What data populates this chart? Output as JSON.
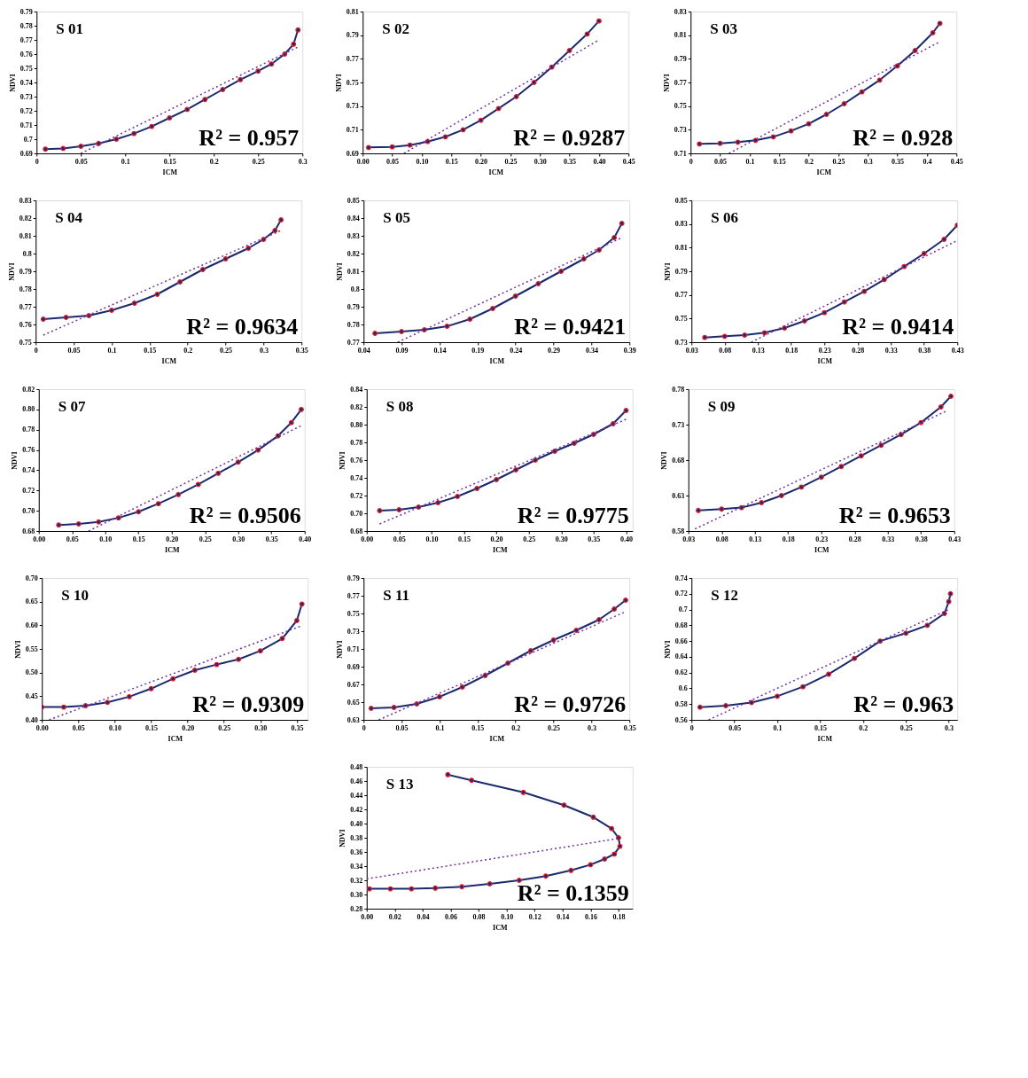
{
  "chart_data": [
    {
      "type": "line",
      "title": "S 01",
      "xlabel": "ICM",
      "ylabel": "NDVI",
      "marker": "circle",
      "line_style": "solid",
      "annotations": [
        "R² = 0.957"
      ],
      "xlim": [
        0,
        0.3
      ],
      "xticks": [
        0,
        0.05,
        0.1,
        0.15,
        0.2,
        0.25,
        0.3
      ],
      "ylim": [
        0.69,
        0.79
      ],
      "yticks": [
        0.69,
        0.7,
        0.71,
        0.72,
        0.73,
        0.74,
        0.75,
        0.76,
        0.77,
        0.78,
        0.79
      ],
      "series": [
        {
          "color": "#1a2a6c",
          "x": [
            0.01,
            0.03,
            0.05,
            0.07,
            0.09,
            0.11,
            0.13,
            0.15,
            0.17,
            0.19,
            0.21,
            0.23,
            0.25,
            0.265,
            0.28,
            0.29,
            0.295
          ],
          "values": [
            0.693,
            0.6935,
            0.695,
            0.697,
            0.7,
            0.704,
            0.709,
            0.715,
            0.721,
            0.728,
            0.735,
            0.742,
            0.748,
            0.753,
            0.76,
            0.767,
            0.777
          ]
        },
        {
          "color": "#7030a0",
          "marker": "none",
          "line_style": "dotted",
          "x": [
            0.05,
            0.295
          ],
          "values": [
            0.69,
            0.765
          ]
        }
      ]
    },
    {
      "type": "line",
      "title": "S 02",
      "xlabel": "ICM",
      "ylabel": "NDVI",
      "marker": "circle",
      "line_style": "solid",
      "annotations": [
        "R² = 0.9287"
      ],
      "xlim": [
        0,
        0.45
      ],
      "xticks": [
        {
          "value": 0,
          "label": "0.00"
        },
        0.05,
        {
          "value": 0.1,
          "label": "0.10"
        },
        0.15,
        {
          "value": 0.2,
          "label": "0.20"
        },
        0.25,
        {
          "value": 0.3,
          "label": "0.30"
        },
        0.35,
        {
          "value": 0.4,
          "label": "0.40"
        },
        0.45
      ],
      "ylim": [
        0.69,
        0.81
      ],
      "yticks": [
        0.69,
        0.71,
        0.73,
        0.75,
        0.77,
        0.79,
        0.81
      ],
      "series": [
        {
          "color": "#1a2a6c",
          "x": [
            0.01,
            0.05,
            0.08,
            0.11,
            0.14,
            0.17,
            0.2,
            0.23,
            0.26,
            0.29,
            0.32,
            0.35,
            0.38,
            0.4
          ],
          "values": [
            0.695,
            0.6955,
            0.697,
            0.7,
            0.704,
            0.71,
            0.718,
            0.728,
            0.738,
            0.75,
            0.763,
            0.777,
            0.791,
            0.802
          ]
        },
        {
          "color": "#7030a0",
          "marker": "none",
          "line_style": "dotted",
          "x": [
            0.07,
            0.4
          ],
          "values": [
            0.69,
            0.786
          ]
        }
      ]
    },
    {
      "type": "line",
      "title": "S 03",
      "xlabel": "ICM",
      "ylabel": "NDVI",
      "marker": "circle",
      "line_style": "solid",
      "annotations": [
        "R² = 0.928"
      ],
      "xlim": [
        0,
        0.45
      ],
      "xticks": [
        0,
        0.05,
        0.1,
        0.15,
        0.2,
        0.25,
        0.3,
        0.35,
        0.4,
        0.45
      ],
      "ylim": [
        0.71,
        0.83
      ],
      "yticks": [
        0.71,
        0.73,
        0.75,
        0.77,
        0.79,
        0.81,
        0.83
      ],
      "series": [
        {
          "color": "#1a2a6c",
          "x": [
            0.015,
            0.05,
            0.08,
            0.11,
            0.14,
            0.17,
            0.2,
            0.23,
            0.26,
            0.29,
            0.32,
            0.35,
            0.38,
            0.41,
            0.422
          ],
          "values": [
            0.718,
            0.7185,
            0.7195,
            0.721,
            0.724,
            0.729,
            0.735,
            0.743,
            0.752,
            0.762,
            0.772,
            0.784,
            0.797,
            0.812,
            0.82
          ]
        },
        {
          "color": "#7030a0",
          "marker": "none",
          "line_style": "dotted",
          "x": [
            0.065,
            0.42
          ],
          "values": [
            0.71,
            0.804
          ]
        }
      ]
    },
    {
      "type": "line",
      "title": "S 04",
      "xlabel": "ICM",
      "ylabel": "NDVI",
      "marker": "circle",
      "line_style": "solid",
      "annotations": [
        "R² = 0.9634"
      ],
      "xlim": [
        0,
        0.35
      ],
      "xticks": [
        0,
        0.05,
        0.1,
        0.15,
        0.2,
        0.25,
        0.3,
        0.35
      ],
      "ylim": [
        0.75,
        0.83
      ],
      "yticks": [
        0.75,
        0.76,
        0.77,
        0.78,
        0.79,
        0.8,
        0.81,
        0.82,
        0.83
      ],
      "series": [
        {
          "color": "#1a2a6c",
          "x": [
            0.01,
            0.04,
            0.07,
            0.1,
            0.13,
            0.16,
            0.19,
            0.22,
            0.25,
            0.28,
            0.3,
            0.315,
            0.323
          ],
          "values": [
            0.763,
            0.764,
            0.765,
            0.768,
            0.772,
            0.777,
            0.784,
            0.791,
            0.797,
            0.803,
            0.808,
            0.813,
            0.819
          ]
        },
        {
          "color": "#7030a0",
          "marker": "none",
          "line_style": "dotted",
          "x": [
            0.01,
            0.323
          ],
          "values": [
            0.754,
            0.813
          ]
        }
      ]
    },
    {
      "type": "line",
      "title": "S 05",
      "xlabel": "ICM",
      "ylabel": "NDVI",
      "marker": "circle",
      "line_style": "solid",
      "annotations": [
        "R² = 0.9421"
      ],
      "xlim": [
        0.04,
        0.39
      ],
      "xticks": [
        0.04,
        0.09,
        0.14,
        0.19,
        0.24,
        0.29,
        0.34,
        0.39
      ],
      "ylim": [
        0.77,
        0.85
      ],
      "yticks": [
        0.77,
        0.78,
        0.79,
        0.8,
        0.81,
        0.82,
        0.83,
        0.84,
        0.85
      ],
      "series": [
        {
          "color": "#1a2a6c",
          "x": [
            0.055,
            0.09,
            0.12,
            0.15,
            0.18,
            0.21,
            0.24,
            0.27,
            0.3,
            0.33,
            0.35,
            0.37,
            0.38
          ],
          "values": [
            0.775,
            0.776,
            0.777,
            0.779,
            0.783,
            0.789,
            0.796,
            0.803,
            0.81,
            0.817,
            0.822,
            0.829,
            0.837
          ]
        },
        {
          "color": "#7030a0",
          "marker": "none",
          "line_style": "dotted",
          "x": [
            0.085,
            0.38
          ],
          "values": [
            0.77,
            0.829
          ]
        }
      ]
    },
    {
      "type": "line",
      "title": "S 06",
      "xlabel": "ICM",
      "ylabel": "NDVI",
      "marker": "circle",
      "line_style": "solid",
      "annotations": [
        "R² = 0.9414"
      ],
      "xlim": [
        0.03,
        0.43
      ],
      "xticks": [
        0.03,
        0.08,
        0.13,
        0.18,
        0.23,
        0.28,
        0.33,
        0.38,
        0.43
      ],
      "ylim": [
        0.73,
        0.85
      ],
      "yticks": [
        0.73,
        0.75,
        0.77,
        0.79,
        0.81,
        0.83,
        0.85
      ],
      "series": [
        {
          "color": "#1a2a6c",
          "x": [
            0.05,
            0.08,
            0.11,
            0.14,
            0.17,
            0.2,
            0.23,
            0.26,
            0.29,
            0.32,
            0.35,
            0.38,
            0.41,
            0.43
          ],
          "values": [
            0.734,
            0.735,
            0.736,
            0.738,
            0.742,
            0.748,
            0.755,
            0.764,
            0.773,
            0.783,
            0.794,
            0.805,
            0.817,
            0.829
          ]
        },
        {
          "color": "#7030a0",
          "marker": "none",
          "line_style": "dotted",
          "x": [
            0.12,
            0.43
          ],
          "values": [
            0.73,
            0.816
          ]
        }
      ]
    },
    {
      "type": "line",
      "title": "S 07",
      "xlabel": "ICM",
      "ylabel": "NDVI",
      "marker": "circle",
      "line_style": "solid",
      "annotations": [
        "R² = 0.9506"
      ],
      "xlim": [
        0,
        0.4
      ],
      "xticks": [
        {
          "value": 0,
          "label": "0.00"
        },
        0.05,
        {
          "value": 0.1,
          "label": "0.10"
        },
        0.15,
        {
          "value": 0.2,
          "label": "0.20"
        },
        0.25,
        {
          "value": 0.3,
          "label": "0.30"
        },
        0.35,
        {
          "value": 0.4,
          "label": "0.40"
        }
      ],
      "ylim": [
        0.68,
        0.82
      ],
      "yticks": [
        0.68,
        {
          "value": 0.7,
          "label": "0.70"
        },
        0.72,
        0.74,
        0.76,
        0.78,
        {
          "value": 0.8,
          "label": "0.80"
        },
        0.82
      ],
      "series": [
        {
          "color": "#1a2a6c",
          "x": [
            0.03,
            0.06,
            0.09,
            0.12,
            0.15,
            0.18,
            0.21,
            0.24,
            0.27,
            0.3,
            0.33,
            0.36,
            0.38,
            0.395
          ],
          "values": [
            0.686,
            0.687,
            0.689,
            0.693,
            0.699,
            0.707,
            0.716,
            0.726,
            0.737,
            0.748,
            0.76,
            0.774,
            0.787,
            0.8
          ]
        },
        {
          "color": "#7030a0",
          "marker": "none",
          "line_style": "dotted",
          "x": [
            0.075,
            0.395
          ],
          "values": [
            0.68,
            0.784
          ]
        }
      ]
    },
    {
      "type": "line",
      "title": "S 08",
      "xlabel": "ICM",
      "ylabel": "NDVI",
      "marker": "circle",
      "line_style": "solid",
      "annotations": [
        "R² = 0.9775"
      ],
      "xlim": [
        0,
        0.41
      ],
      "xticks": [
        {
          "value": 0,
          "label": "0.00"
        },
        0.05,
        {
          "value": 0.1,
          "label": "0.10"
        },
        0.15,
        {
          "value": 0.2,
          "label": "0.20"
        },
        0.25,
        {
          "value": 0.3,
          "label": "0.30"
        },
        0.35,
        {
          "value": 0.4,
          "label": "0.40"
        }
      ],
      "ylim": [
        0.68,
        0.84
      ],
      "yticks": [
        0.68,
        {
          "value": 0.7,
          "label": "0.70"
        },
        0.72,
        0.74,
        0.76,
        0.78,
        {
          "value": 0.8,
          "label": "0.80"
        },
        0.82,
        0.84
      ],
      "series": [
        {
          "color": "#1a2a6c",
          "x": [
            0.02,
            0.05,
            0.08,
            0.11,
            0.14,
            0.17,
            0.2,
            0.23,
            0.26,
            0.29,
            0.32,
            0.35,
            0.38,
            0.4
          ],
          "values": [
            0.703,
            0.704,
            0.707,
            0.712,
            0.719,
            0.728,
            0.738,
            0.749,
            0.76,
            0.77,
            0.779,
            0.789,
            0.801,
            0.816
          ]
        },
        {
          "color": "#7030a0",
          "marker": "none",
          "line_style": "dotted",
          "x": [
            0.02,
            0.4
          ],
          "values": [
            0.688,
            0.806
          ]
        }
      ]
    },
    {
      "type": "line",
      "title": "S 09",
      "xlabel": "ICM",
      "ylabel": "NDVI",
      "marker": "circle",
      "line_style": "solid",
      "annotations": [
        "R² = 0.9653"
      ],
      "xlim": [
        0.03,
        0.43
      ],
      "xticks": [
        0.03,
        0.08,
        0.13,
        0.18,
        0.23,
        0.28,
        0.33,
        0.38,
        0.43
      ],
      "ylim": [
        0.58,
        0.78
      ],
      "yticks": [
        0.58,
        0.63,
        0.68,
        0.73,
        0.78
      ],
      "series": [
        {
          "color": "#1a2a6c",
          "x": [
            0.045,
            0.08,
            0.11,
            0.14,
            0.17,
            0.2,
            0.23,
            0.26,
            0.29,
            0.32,
            0.35,
            0.38,
            0.41,
            0.425
          ],
          "values": [
            0.609,
            0.611,
            0.613,
            0.62,
            0.63,
            0.642,
            0.656,
            0.671,
            0.686,
            0.701,
            0.716,
            0.733,
            0.755,
            0.77
          ]
        },
        {
          "color": "#7030a0",
          "marker": "none",
          "line_style": "dotted",
          "x": [
            0.04,
            0.42
          ],
          "values": [
            0.583,
            0.75
          ]
        }
      ]
    },
    {
      "type": "line",
      "title": "S 10",
      "xlabel": "ICM",
      "ylabel": "NDVI",
      "marker": "circle",
      "line_style": "solid",
      "annotations": [
        "R² = 0.9309"
      ],
      "xlim": [
        0,
        0.365
      ],
      "xticks": [
        {
          "value": 0,
          "label": "0.00"
        },
        0.05,
        {
          "value": 0.1,
          "label": "0.10"
        },
        0.15,
        {
          "value": 0.2,
          "label": "0.20"
        },
        0.25,
        {
          "value": 0.3,
          "label": "0.30"
        },
        0.35
      ],
      "ylim": [
        0.4,
        0.7
      ],
      "yticks": [
        {
          "value": 0.4,
          "label": "0.40"
        },
        0.45,
        {
          "value": 0.5,
          "label": "0.50"
        },
        0.55,
        {
          "value": 0.6,
          "label": "0.60"
        },
        0.65,
        {
          "value": 0.7,
          "label": "0.70"
        }
      ],
      "series": [
        {
          "color": "#1a2a6c",
          "x": [
            0.0,
            0.03,
            0.06,
            0.09,
            0.12,
            0.15,
            0.18,
            0.21,
            0.24,
            0.27,
            0.3,
            0.33,
            0.35,
            0.357
          ],
          "values": [
            0.427,
            0.427,
            0.43,
            0.437,
            0.449,
            0.466,
            0.487,
            0.505,
            0.517,
            0.528,
            0.546,
            0.572,
            0.61,
            0.645
          ]
        },
        {
          "color": "#7030a0",
          "marker": "none",
          "line_style": "dotted",
          "x": [
            0.01,
            0.355
          ],
          "values": [
            0.4,
            0.598
          ]
        }
      ]
    },
    {
      "type": "line",
      "title": "S 11",
      "xlabel": "ICM",
      "ylabel": "NDVI",
      "marker": "circle",
      "line_style": "solid",
      "annotations": [
        "R² = 0.9726"
      ],
      "xlim": [
        0,
        0.35
      ],
      "xticks": [
        0,
        0.05,
        0.1,
        0.15,
        0.2,
        0.25,
        0.3,
        0.35
      ],
      "ylim": [
        0.63,
        0.79
      ],
      "yticks": [
        0.63,
        0.65,
        0.67,
        0.69,
        0.71,
        0.73,
        0.75,
        0.77,
        0.79
      ],
      "series": [
        {
          "color": "#1a2a6c",
          "x": [
            0.01,
            0.04,
            0.07,
            0.1,
            0.13,
            0.16,
            0.19,
            0.22,
            0.25,
            0.28,
            0.31,
            0.33,
            0.345
          ],
          "values": [
            0.643,
            0.644,
            0.648,
            0.656,
            0.667,
            0.68,
            0.694,
            0.708,
            0.72,
            0.731,
            0.743,
            0.755,
            0.765
          ]
        },
        {
          "color": "#7030a0",
          "marker": "none",
          "line_style": "dotted",
          "x": [
            0.02,
            0.345
          ],
          "values": [
            0.63,
            0.752
          ]
        }
      ]
    },
    {
      "type": "line",
      "title": "S 12",
      "xlabel": "ICM",
      "ylabel": "NDVI",
      "marker": "circle",
      "line_style": "solid",
      "annotations": [
        "R² = 0.963"
      ],
      "xlim": [
        0,
        0.31
      ],
      "xticks": [
        0,
        0.05,
        0.1,
        0.15,
        0.2,
        0.25,
        0.3
      ],
      "ylim": [
        0.56,
        0.74
      ],
      "yticks": [
        0.56,
        0.58,
        0.6,
        0.62,
        0.64,
        0.66,
        0.68,
        0.7,
        0.72,
        0.74
      ],
      "series": [
        {
          "color": "#1a2a6c",
          "x": [
            0.01,
            0.04,
            0.07,
            0.1,
            0.13,
            0.16,
            0.19,
            0.22,
            0.25,
            0.275,
            0.295,
            0.3,
            0.302
          ],
          "values": [
            0.576,
            0.578,
            0.582,
            0.59,
            0.602,
            0.618,
            0.638,
            0.66,
            0.67,
            0.68,
            0.695,
            0.71,
            0.72
          ]
        },
        {
          "color": "#7030a0",
          "marker": "none",
          "line_style": "dotted",
          "x": [
            0.02,
            0.3
          ],
          "values": [
            0.56,
            0.7
          ]
        }
      ]
    },
    {
      "type": "line",
      "title": "S 13",
      "xlabel": "ICM",
      "ylabel": "NDVI",
      "marker": "circle",
      "line_style": "solid",
      "annotations": [
        "R² = 0.1359"
      ],
      "xlim": [
        0,
        0.19
      ],
      "xticks": [
        {
          "value": 0,
          "label": "0.00"
        },
        0.02,
        0.04,
        0.06,
        0.08,
        {
          "value": 0.1,
          "label": "0.10"
        },
        0.12,
        0.14,
        0.16,
        0.18
      ],
      "ylim": [
        0.28,
        0.48
      ],
      "yticks": [
        0.28,
        {
          "value": 0.3,
          "label": "0.30"
        },
        0.32,
        0.34,
        0.36,
        0.38,
        {
          "value": 0.4,
          "label": "0.40"
        },
        0.42,
        0.44,
        0.46,
        0.48
      ],
      "series": [
        {
          "color": "#1a2a6c",
          "x": [
            0.002,
            0.017,
            0.032,
            0.049,
            0.068,
            0.088,
            0.109,
            0.128,
            0.146,
            0.16,
            0.17,
            0.177,
            0.181,
            0.18,
            0.175,
            0.162,
            0.141,
            0.112,
            0.075,
            0.058
          ],
          "values": [
            0.308,
            0.308,
            0.308,
            0.309,
            0.311,
            0.315,
            0.32,
            0.326,
            0.334,
            0.342,
            0.35,
            0.357,
            0.368,
            0.38,
            0.393,
            0.409,
            0.426,
            0.444,
            0.461,
            0.469
          ]
        },
        {
          "color": "#7030a0",
          "marker": "none",
          "line_style": "dotted",
          "x": [
            0.0,
            0.18
          ],
          "values": [
            0.322,
            0.379
          ]
        }
      ]
    }
  ]
}
